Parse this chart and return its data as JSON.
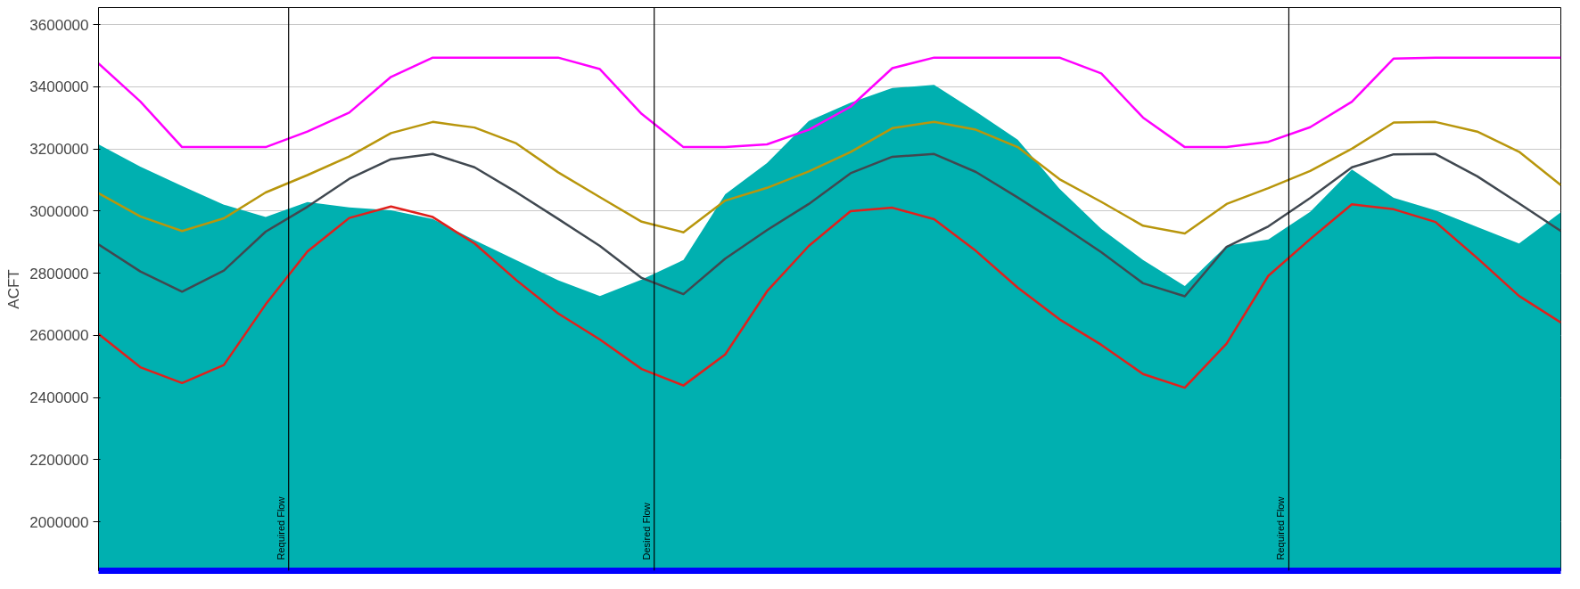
{
  "chart_data": {
    "type": "line",
    "ylabel": "ACFT",
    "ylim": [
      1843000,
      3655000
    ],
    "categories": [
      null,
      null,
      null,
      null,
      null,
      null,
      null,
      null,
      null,
      null,
      null,
      null,
      null,
      null,
      null,
      null,
      null,
      null,
      null,
      null,
      null,
      null,
      null,
      null,
      null,
      null,
      null,
      null,
      null,
      null,
      null,
      null,
      null,
      null,
      null,
      null
    ],
    "yticks": [
      2000000,
      2200000,
      2400000,
      2600000,
      2800000,
      3000000,
      3200000,
      3400000,
      3600000
    ],
    "tick_labels": "y",
    "grid": "y",
    "marker": "none",
    "line_style": "solid",
    "series": [
      {
        "type": "area",
        "color": "#00b0b0",
        "values": [
          3215000,
          3143000,
          3081000,
          3021000,
          2981000,
          3029000,
          3012000,
          3003000,
          2975000,
          2907000,
          2842000,
          2778000,
          2727000,
          2780000,
          2843000,
          3054000,
          3155000,
          3290000,
          3349000,
          3396000,
          3406000,
          3320000,
          3230000,
          3072000,
          2943000,
          2843000,
          2759000,
          2889000,
          2909000,
          2998000,
          3134000,
          3043000,
          3003000,
          2949000,
          2896000,
          2996000
        ]
      },
      {
        "color": "#ff00ff",
        "values": [
          3475000,
          3353000,
          3206000,
          3206000,
          3206000,
          3256000,
          3317000,
          3432000,
          3494000,
          3494000,
          3494000,
          3494000,
          3457000,
          3313000,
          3206000,
          3206000,
          3215000,
          3262000,
          3336000,
          3460000,
          3494000,
          3494000,
          3494000,
          3494000,
          3443000,
          3301000,
          3206000,
          3206000,
          3223000,
          3270000,
          3352000,
          3491000,
          3494000,
          3494000,
          3494000,
          3494000
        ]
      },
      {
        "color": "#b8960c",
        "values": [
          3058000,
          2983000,
          2936000,
          2977000,
          3060000,
          3116000,
          3176000,
          3251000,
          3287000,
          3269000,
          3218000,
          3125000,
          3045000,
          2966000,
          2932000,
          3034000,
          3075000,
          3128000,
          3190000,
          3267000,
          3287000,
          3262000,
          3206000,
          3103000,
          3030000,
          2953000,
          2928000,
          3023000,
          3074000,
          3129000,
          3201000,
          3285000,
          3287000,
          3256000,
          3191000,
          3084000
        ]
      },
      {
        "color": "#404850",
        "values": [
          2893000,
          2806000,
          2741000,
          2809000,
          2934000,
          3014000,
          3104000,
          3167000,
          3184000,
          3141000,
          3061000,
          2975000,
          2888000,
          2785000,
          2733000,
          2847000,
          2939000,
          3023000,
          3122000,
          3175000,
          3184000,
          3126000,
          3044000,
          2958000,
          2868000,
          2768000,
          2726000,
          2885000,
          2951000,
          3042000,
          3141000,
          3183000,
          3184000,
          3112000,
          3025000,
          2936000
        ]
      },
      {
        "color": "#e0201c",
        "values": [
          2605000,
          2498000,
          2447000,
          2505000,
          2700000,
          2870000,
          2978000,
          3015000,
          2981000,
          2896000,
          2778000,
          2671000,
          2587000,
          2492000,
          2439000,
          2539000,
          2742000,
          2888000,
          3000000,
          3011000,
          2974000,
          2872000,
          2754000,
          2652000,
          2570000,
          2476000,
          2432000,
          2574000,
          2792000,
          2910000,
          3022000,
          3006000,
          2965000,
          2849000,
          2727000,
          2642000
        ]
      }
    ],
    "annotations": [
      "Required Flow",
      "Desired Flow",
      "Required Flow"
    ]
  }
}
